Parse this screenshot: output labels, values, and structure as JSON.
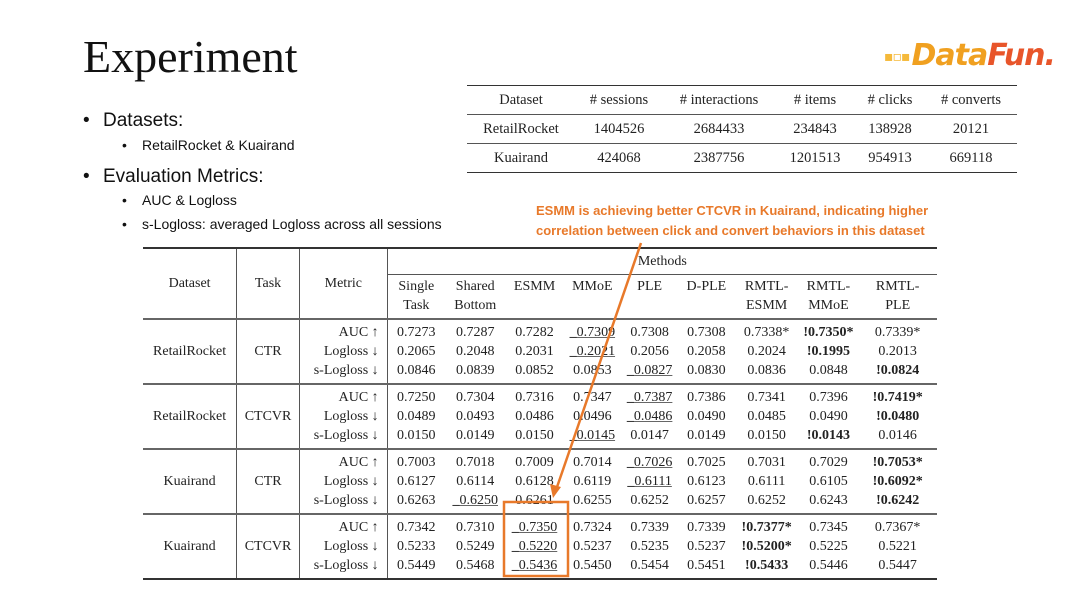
{
  "title": "Experiment",
  "logo": {
    "text_main": "Data",
    "text_accent": "Fun.",
    "colors": {
      "main": "#f0a020",
      "accent": "#e8552a"
    }
  },
  "bullets": [
    {
      "label": "Datasets:",
      "sub": [
        "RetailRocket  & Kuairand"
      ]
    },
    {
      "label": "Evaluation Metrics:",
      "sub": [
        "AUC & Logloss",
        "s-Logloss: averaged Logloss across all sessions"
      ]
    }
  ],
  "dataset_table": {
    "headers": [
      "Dataset",
      "# sessions",
      "# interactions",
      "# items",
      "# clicks",
      "# converts"
    ],
    "rows": [
      [
        "RetailRocket",
        "1404526",
        "2684433",
        "234843",
        "138928",
        "20121"
      ],
      [
        "Kuairand",
        "424068",
        "2387756",
        "1201513",
        "954913",
        "669118"
      ]
    ]
  },
  "annotation": {
    "text_line1": "ESMM is achieving better CTCVR in Kuairand, indicating higher",
    "text_line2": "correlation between click and convert behaviors in this dataset",
    "color": "#e8792a",
    "highlight": "Kuairand CTCVR ESMM"
  },
  "results_table": {
    "headers": {
      "dataset": "Dataset",
      "task": "Task",
      "metric": "Metric",
      "methods": "Methods",
      "method_names": [
        [
          "Single",
          "Task"
        ],
        [
          "Shared",
          "Bottom"
        ],
        [
          "ESMM",
          ""
        ],
        [
          "MMoE",
          ""
        ],
        [
          "PLE",
          ""
        ],
        [
          "D-PLE",
          ""
        ],
        [
          "RMTL-",
          "ESMM"
        ],
        [
          "RMTL-",
          "MMoE"
        ],
        [
          "RMTL-",
          "PLE"
        ]
      ]
    },
    "groups": [
      {
        "dataset": "RetailRocket",
        "task": "CTR",
        "rows": [
          {
            "metric": "AUC ↑",
            "cells": [
              "0.7273",
              "0.7287",
              "0.7282",
              "_0.7309",
              "0.7308",
              "0.7308",
              "0.7338*",
              "!0.7350*",
              "0.7339*"
            ]
          },
          {
            "metric": "Logloss ↓",
            "cells": [
              "0.2065",
              "0.2048",
              "0.2031",
              "_0.2021",
              "0.2056",
              "0.2058",
              "0.2024",
              "!0.1995",
              "0.2013"
            ]
          },
          {
            "metric": "s-Logloss ↓",
            "cells": [
              "0.0846",
              "0.0839",
              "0.0852",
              "0.0853",
              "_0.0827",
              "0.0830",
              "0.0836",
              "0.0848",
              "!0.0824"
            ]
          }
        ]
      },
      {
        "dataset": "RetailRocket",
        "task": "CTCVR",
        "rows": [
          {
            "metric": "AUC ↑",
            "cells": [
              "0.7250",
              "0.7304",
              "0.7316",
              "0.7347",
              "_0.7387",
              "0.7386",
              "0.7341",
              "0.7396",
              "!0.7419*"
            ]
          },
          {
            "metric": "Logloss ↓",
            "cells": [
              "0.0489",
              "0.0493",
              "0.0486",
              "0.0496",
              "_0.0486",
              "0.0490",
              "0.0485",
              "0.0490",
              "!0.0480"
            ]
          },
          {
            "metric": "s-Logloss ↓",
            "cells": [
              "0.0150",
              "0.0149",
              "0.0150",
              "_0.0145",
              "0.0147",
              "0.0149",
              "0.0150",
              "!0.0143",
              "0.0146"
            ]
          }
        ]
      },
      {
        "dataset": "Kuairand",
        "task": "CTR",
        "rows": [
          {
            "metric": "AUC ↑",
            "cells": [
              "0.7003",
              "0.7018",
              "0.7009",
              "0.7014",
              "_0.7026",
              "0.7025",
              "0.7031",
              "0.7029",
              "!0.7053*"
            ]
          },
          {
            "metric": "Logloss ↓",
            "cells": [
              "0.6127",
              "0.6114",
              "0.6128",
              "0.6119",
              "_0.6111",
              "0.6123",
              "0.6111",
              "0.6105",
              "!0.6092*"
            ]
          },
          {
            "metric": "s-Logloss ↓",
            "cells": [
              "0.6263",
              "_0.6250",
              "0.6261",
              "0.6255",
              "0.6252",
              "0.6257",
              "0.6252",
              "0.6243",
              "!0.6242"
            ]
          }
        ]
      },
      {
        "dataset": "Kuairand",
        "task": "CTCVR",
        "rows": [
          {
            "metric": "AUC ↑",
            "cells": [
              "0.7342",
              "0.7310",
              "_0.7350",
              "0.7324",
              "0.7339",
              "0.7339",
              "!0.7377*",
              "0.7345",
              "0.7367*"
            ]
          },
          {
            "metric": "Logloss ↓",
            "cells": [
              "0.5233",
              "0.5249",
              "_0.5220",
              "0.5237",
              "0.5235",
              "0.5237",
              "!0.5200*",
              "0.5225",
              "0.5221"
            ]
          },
          {
            "metric": "s-Logloss ↓",
            "cells": [
              "0.5449",
              "0.5468",
              "_0.5436",
              "0.5450",
              "0.5454",
              "0.5451",
              "!0.5433",
              "0.5446",
              "0.5447"
            ]
          }
        ]
      }
    ]
  }
}
